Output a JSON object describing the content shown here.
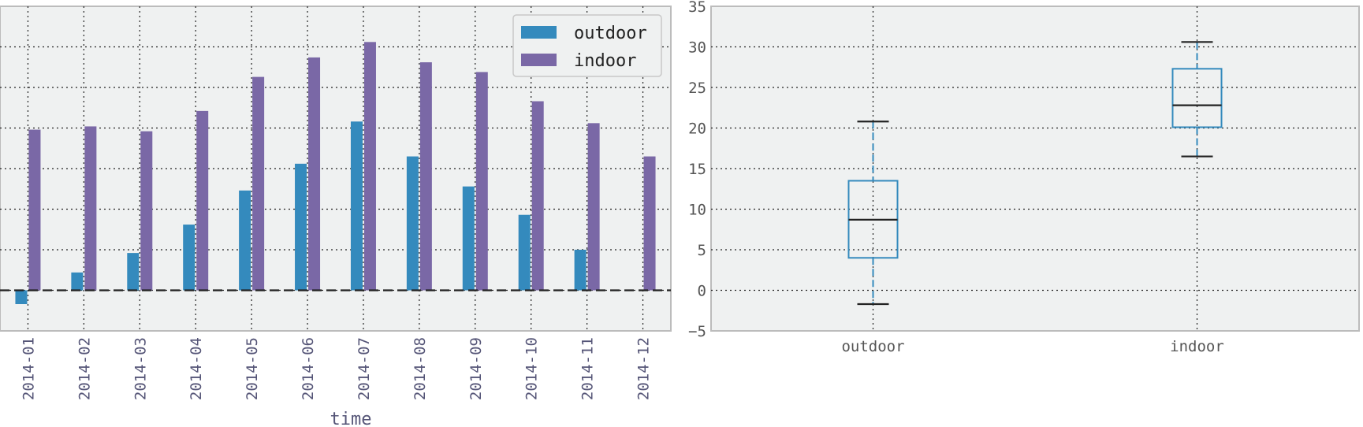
{
  "chart_data": [
    {
      "type": "bar",
      "categories": [
        "2014-01",
        "2014-02",
        "2014-03",
        "2014-04",
        "2014-05",
        "2014-06",
        "2014-07",
        "2014-08",
        "2014-09",
        "2014-10",
        "2014-11",
        "2014-12"
      ],
      "series": [
        {
          "name": "outdoor",
          "color": "#348ABD",
          "values": [
            -1.7,
            2.2,
            4.6,
            8.1,
            12.3,
            15.6,
            20.8,
            16.5,
            12.8,
            9.3,
            5.0,
            null
          ]
        },
        {
          "name": "indoor",
          "color": "#7A68A6",
          "values": [
            19.8,
            20.2,
            19.6,
            22.1,
            26.3,
            28.7,
            30.6,
            28.1,
            26.9,
            23.3,
            20.6,
            16.5
          ]
        }
      ],
      "xlabel": "time",
      "ylabel": "",
      "ylim": [
        -5,
        35
      ],
      "yticks": [
        "−5",
        "0",
        "5",
        "10",
        "15",
        "20",
        "25",
        "30",
        "35"
      ],
      "grid": true,
      "legend_position": "top-right",
      "zero_line": true
    },
    {
      "type": "box",
      "categories": [
        "outdoor",
        "indoor"
      ],
      "boxes": [
        {
          "name": "outdoor",
          "min": -1.7,
          "q1": 4.0,
          "median": 8.7,
          "q3": 13.5,
          "max": 20.8
        },
        {
          "name": "indoor",
          "min": 16.5,
          "q1": 20.1,
          "median": 22.8,
          "q3": 27.3,
          "max": 30.6
        }
      ],
      "box_color": "#348ABD",
      "ylim": [
        -5,
        35
      ],
      "yticks": [
        "−5",
        "0",
        "5",
        "10",
        "15",
        "20",
        "25",
        "30",
        "35"
      ],
      "grid": true
    }
  ]
}
